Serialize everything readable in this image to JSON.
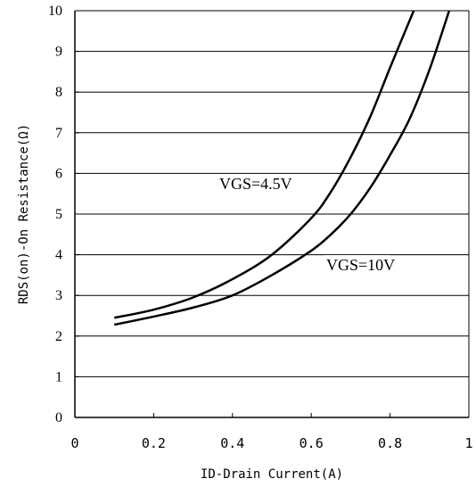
{
  "chart_data": {
    "type": "line",
    "xlabel": "ID-Drain Current(A)",
    "ylabel": "RDS(on)-On Resistance(Ω)",
    "xlim": [
      0,
      1
    ],
    "ylim": [
      0,
      10
    ],
    "x_ticks": [
      "0",
      "0.2",
      "0.4",
      "0.6",
      "0.8",
      "1"
    ],
    "y_ticks": [
      "0",
      "1",
      "2",
      "3",
      "4",
      "5",
      "6",
      "7",
      "8",
      "9",
      "10"
    ],
    "grid": "horizontal",
    "series": [
      {
        "name": "VGS=4.5V",
        "x": [
          0.1,
          0.2,
          0.3,
          0.4,
          0.5,
          0.6,
          0.65,
          0.7,
          0.75,
          0.8,
          0.86
        ],
        "y": [
          2.45,
          2.65,
          2.95,
          3.4,
          4.0,
          4.9,
          5.55,
          6.4,
          7.4,
          8.6,
          10.0
        ]
      },
      {
        "name": "VGS=10V",
        "x": [
          0.1,
          0.2,
          0.3,
          0.4,
          0.5,
          0.6,
          0.65,
          0.7,
          0.75,
          0.8,
          0.85,
          0.9,
          0.95
        ],
        "y": [
          2.28,
          2.48,
          2.7,
          3.0,
          3.5,
          4.1,
          4.5,
          5.0,
          5.65,
          6.45,
          7.35,
          8.55,
          10.0
        ]
      }
    ]
  }
}
